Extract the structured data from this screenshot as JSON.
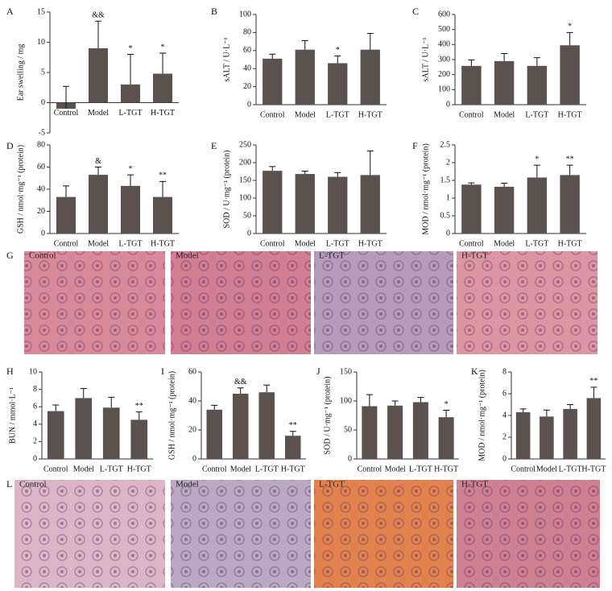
{
  "chart_data": [
    {
      "type": "bar",
      "label": "A",
      "ylabel": "Ear swelling / mg",
      "categories": [
        "Control",
        "Model",
        "L-TGT",
        "H-TGT"
      ],
      "values": [
        -1,
        9,
        3,
        4.8
      ],
      "errors": [
        3.7,
        4.5,
        5,
        3.4
      ],
      "annotations": [
        null,
        "&&",
        "*",
        "*"
      ],
      "ylim": [
        -5,
        15
      ],
      "yticks": [
        -5,
        0,
        5,
        10,
        15
      ],
      "color": "#5b524f"
    },
    {
      "type": "bar",
      "label": "B",
      "ylabel": "sALT / U·L⁻¹",
      "categories": [
        "Control",
        "Model",
        "L-TGT",
        "H-TGT"
      ],
      "values": [
        51,
        61,
        46,
        61
      ],
      "errors": [
        5,
        10,
        8,
        18
      ],
      "annotations": [
        null,
        null,
        "*",
        null
      ],
      "ylim": [
        0,
        100
      ],
      "yticks": [
        0,
        20,
        40,
        60,
        80,
        100
      ],
      "color": "#5b524f"
    },
    {
      "type": "bar",
      "label": "C",
      "ylabel": "sALT / U·L⁻¹",
      "categories": [
        "Control",
        "Model",
        "L-TGT",
        "H-TGT"
      ],
      "values": [
        258,
        290,
        258,
        395
      ],
      "errors": [
        40,
        50,
        55,
        85
      ],
      "annotations": [
        null,
        null,
        null,
        "*"
      ],
      "ylim": [
        0,
        600
      ],
      "yticks": [
        0,
        100,
        200,
        300,
        400,
        500,
        600
      ],
      "color": "#5b524f"
    },
    {
      "type": "bar",
      "label": "D",
      "ylabel": "GSH / nmol·mg⁻¹ (protein)",
      "categories": [
        "Control",
        "Model",
        "L-TGT",
        "H-TGT"
      ],
      "values": [
        33,
        53,
        43,
        33
      ],
      "errors": [
        10,
        7,
        10,
        14
      ],
      "annotations": [
        null,
        "&",
        "*",
        "**"
      ],
      "ylim": [
        0,
        80
      ],
      "yticks": [
        0,
        20,
        40,
        60,
        80
      ],
      "color": "#5b524f"
    },
    {
      "type": "bar",
      "label": "E",
      "ylabel": "SOD / U·mg⁻¹ (protein)",
      "categories": [
        "Control",
        "Model",
        "L-TGT",
        "H-TGT"
      ],
      "values": [
        177,
        168,
        160,
        165
      ],
      "errors": [
        12,
        8,
        12,
        68
      ],
      "annotations": [
        null,
        null,
        null,
        null
      ],
      "ylim": [
        0,
        250
      ],
      "yticks": [
        0,
        50,
        100,
        150,
        200,
        250
      ],
      "color": "#5b524f"
    },
    {
      "type": "bar",
      "label": "F",
      "ylabel": "MOD / nmol·mg⁻¹ (protein)",
      "categories": [
        "Control",
        "Model",
        "L-TGT",
        "H-TGT"
      ],
      "values": [
        1.38,
        1.32,
        1.58,
        1.65
      ],
      "errors": [
        0.05,
        0.1,
        0.35,
        0.28
      ],
      "annotations": [
        null,
        null,
        "*",
        "**"
      ],
      "ylim": [
        0,
        2.5
      ],
      "yticks": [
        0,
        0.5,
        1,
        1.5,
        2,
        2.5
      ],
      "color": "#5b524f"
    },
    {
      "type": "bar",
      "label": "H",
      "ylabel": "BUN / mmol·L⁻¹",
      "categories": [
        "Control",
        "Model",
        "L-TGT",
        "H-TGT"
      ],
      "values": [
        5.5,
        7,
        5.9,
        4.5
      ],
      "errors": [
        0.7,
        1.1,
        1.2,
        0.9
      ],
      "annotations": [
        null,
        null,
        null,
        "**"
      ],
      "ylim": [
        0,
        10
      ],
      "yticks": [
        0,
        2,
        4,
        6,
        8,
        10
      ],
      "color": "#5b524f"
    },
    {
      "type": "bar",
      "label": "I",
      "ylabel": "GSH / nmol·mg⁻¹ (protein)",
      "categories": [
        "Control",
        "Model",
        "L-TGT",
        "H-TGT"
      ],
      "values": [
        34,
        45,
        46,
        16
      ],
      "errors": [
        3,
        4,
        5,
        3
      ],
      "annotations": [
        null,
        "&&",
        null,
        "**"
      ],
      "ylim": [
        0,
        60
      ],
      "yticks": [
        0,
        20,
        40,
        60
      ],
      "color": "#5b524f"
    },
    {
      "type": "bar",
      "label": "J",
      "ylabel": "SOD / U·mg⁻¹ (protein)",
      "categories": [
        "Control",
        "Model",
        "L-TGT",
        "H-TGT"
      ],
      "values": [
        91,
        92,
        98,
        72
      ],
      "errors": [
        20,
        8,
        8,
        12
      ],
      "annotations": [
        null,
        null,
        null,
        "*"
      ],
      "ylim": [
        0,
        150
      ],
      "yticks": [
        0,
        50,
        100,
        150
      ],
      "color": "#5b524f"
    },
    {
      "type": "bar",
      "label": "K",
      "ylabel": "MOD / nmol·mg⁻¹ (protein)",
      "categories": [
        "Control",
        "Model",
        "L-TGT",
        "H-TGT"
      ],
      "values": [
        4.3,
        3.9,
        4.6,
        5.6
      ],
      "errors": [
        0.3,
        0.6,
        0.4,
        1
      ],
      "annotations": [
        null,
        null,
        null,
        "**"
      ],
      "ylim": [
        0,
        8
      ],
      "yticks": [
        0,
        2,
        4,
        6,
        8
      ],
      "color": "#5b524f"
    }
  ],
  "image_panels": [
    {
      "label": "G",
      "images": [
        "Control",
        "Model",
        "L-TGT",
        "H-TGT"
      ]
    },
    {
      "label": "L",
      "images": [
        "Control",
        "Model",
        "L-TGT",
        "H-TGT"
      ]
    }
  ]
}
